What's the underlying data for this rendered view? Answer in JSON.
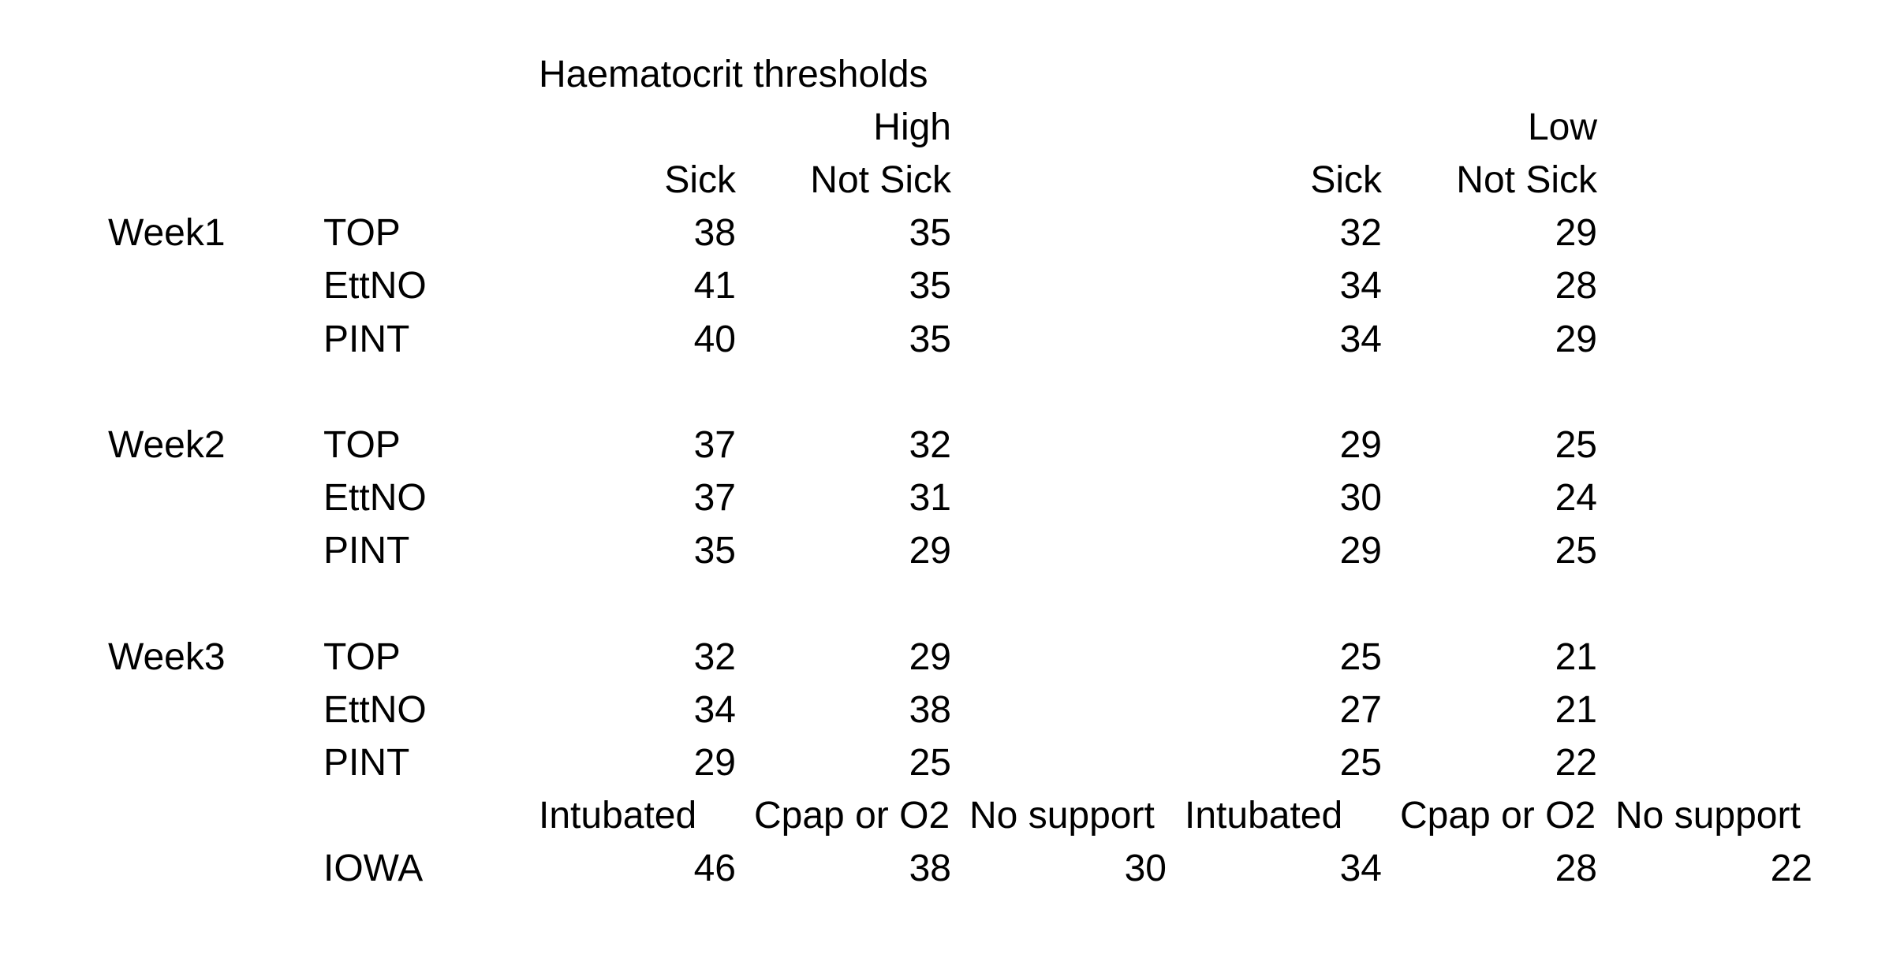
{
  "title": "Haematocrit thresholds",
  "group_headers": {
    "high": "High",
    "low": "Low"
  },
  "sub_headers": {
    "sick": "Sick",
    "not_sick": "Not Sick"
  },
  "weeks": [
    {
      "label": "Week1",
      "rows": [
        {
          "trial": "TOP",
          "high_sick": "38",
          "high_not_sick": "35",
          "low_sick": "32",
          "low_not_sick": "29"
        },
        {
          "trial": "EttNO",
          "high_sick": "41",
          "high_not_sick": "35",
          "low_sick": "34",
          "low_not_sick": "28"
        },
        {
          "trial": "PINT",
          "high_sick": "40",
          "high_not_sick": "35",
          "low_sick": "34",
          "low_not_sick": "29"
        }
      ]
    },
    {
      "label": "Week2",
      "rows": [
        {
          "trial": "TOP",
          "high_sick": "37",
          "high_not_sick": "32",
          "low_sick": "29",
          "low_not_sick": "25"
        },
        {
          "trial": "EttNO",
          "high_sick": "37",
          "high_not_sick": "31",
          "low_sick": "30",
          "low_not_sick": "24"
        },
        {
          "trial": "PINT",
          "high_sick": "35",
          "high_not_sick": "29",
          "low_sick": "29",
          "low_not_sick": "25"
        }
      ]
    },
    {
      "label": "Week3",
      "rows": [
        {
          "trial": "TOP",
          "high_sick": "32",
          "high_not_sick": "29",
          "low_sick": "25",
          "low_not_sick": "21"
        },
        {
          "trial": "EttNO",
          "high_sick": "34",
          "high_not_sick": "38",
          "low_sick": "27",
          "low_not_sick": "21"
        },
        {
          "trial": "PINT",
          "high_sick": "29",
          "high_not_sick": "25",
          "low_sick": "25",
          "low_not_sick": "22"
        }
      ]
    }
  ],
  "iowa": {
    "headers": [
      "Intubated",
      "Cpap or O2",
      "No support",
      "Intubated",
      "Cpap or O2",
      "No support"
    ],
    "label": "IOWA",
    "values": [
      "46",
      "38",
      "30",
      "34",
      "28",
      "22"
    ]
  },
  "colors": {
    "background": "#ffffff",
    "text": "#000000"
  }
}
